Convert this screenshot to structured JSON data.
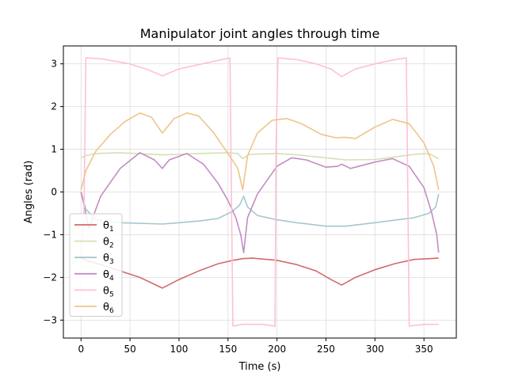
{
  "chart_data": {
    "type": "line",
    "title": "Manipulator joint angles through time",
    "xlabel": "Time (s)",
    "ylabel": "Angles (rad)",
    "xlim": [
      -18,
      383
    ],
    "ylim": [
      -3.42,
      3.42
    ],
    "xticks": [
      0,
      50,
      100,
      150,
      200,
      250,
      300,
      350
    ],
    "yticks": [
      -3,
      -2,
      -1,
      0,
      1,
      2,
      3
    ],
    "grid": true,
    "legend_position": "lower-left",
    "series": [
      {
        "name": "θ1",
        "sub": "1",
        "color": "#d46a6a",
        "x": [
          0,
          5,
          20,
          40,
          60,
          83,
          100,
          120,
          140,
          155,
          165,
          175,
          200,
          220,
          240,
          255,
          266,
          280,
          300,
          320,
          340,
          365
        ],
        "y": [
          -1.55,
          -1.6,
          -1.7,
          -1.85,
          -2.0,
          -2.25,
          -2.05,
          -1.85,
          -1.68,
          -1.6,
          -1.56,
          -1.55,
          -1.6,
          -1.7,
          -1.85,
          -2.05,
          -2.18,
          -2.0,
          -1.82,
          -1.68,
          -1.58,
          -1.55
        ]
      },
      {
        "name": "θ2",
        "sub": "2",
        "color": "#d4e0b4",
        "x": [
          0,
          5,
          15,
          40,
          83,
          100,
          120,
          150,
          160,
          165,
          172,
          200,
          220,
          250,
          270,
          300,
          340,
          355,
          365
        ],
        "y": [
          0.8,
          0.85,
          0.9,
          0.92,
          0.87,
          0.88,
          0.9,
          0.92,
          0.9,
          0.78,
          0.88,
          0.9,
          0.87,
          0.8,
          0.75,
          0.76,
          0.88,
          0.9,
          0.78
        ]
      },
      {
        "name": "θ3",
        "sub": "3",
        "color": "#a5c8cc",
        "x": [
          0,
          5,
          15,
          40,
          83,
          100,
          120,
          140,
          155,
          162,
          166,
          170,
          180,
          200,
          220,
          250,
          270,
          300,
          340,
          355,
          362,
          365
        ],
        "y": [
          0.0,
          -0.4,
          -0.65,
          -0.72,
          -0.75,
          -0.72,
          -0.68,
          -0.62,
          -0.45,
          -0.3,
          -0.1,
          -0.35,
          -0.55,
          -0.65,
          -0.72,
          -0.8,
          -0.8,
          -0.72,
          -0.6,
          -0.5,
          -0.35,
          -0.05
        ]
      },
      {
        "name": "θ4",
        "sub": "4",
        "color": "#c28dc2",
        "x": [
          0,
          3,
          8,
          20,
          40,
          60,
          75,
          83,
          90,
          108,
          125,
          140,
          150,
          158,
          163,
          166,
          170,
          180,
          200,
          215,
          230,
          250,
          262,
          266,
          275,
          300,
          318,
          335,
          350,
          358,
          363,
          365
        ],
        "y": [
          0.0,
          -0.3,
          -0.85,
          -0.1,
          0.55,
          0.92,
          0.75,
          0.55,
          0.75,
          0.9,
          0.65,
          0.2,
          -0.2,
          -0.6,
          -1.0,
          -1.42,
          -0.6,
          -0.05,
          0.6,
          0.8,
          0.75,
          0.58,
          0.6,
          0.65,
          0.55,
          0.7,
          0.78,
          0.6,
          0.1,
          -0.5,
          -1.0,
          -1.42
        ]
      },
      {
        "name": "θ5",
        "sub": "5",
        "color": "#ffc0d4",
        "x": [
          0,
          3,
          5,
          20,
          50,
          70,
          83,
          100,
          120,
          140,
          152,
          153,
          155,
          165,
          185,
          198,
          199,
          201,
          220,
          240,
          255,
          266,
          280,
          300,
          320,
          332,
          333,
          335,
          350,
          365
        ],
        "y": [
          -1.55,
          -0.5,
          3.14,
          3.12,
          3.0,
          2.85,
          2.72,
          2.88,
          2.98,
          3.08,
          3.14,
          1.0,
          -3.14,
          -3.1,
          -3.1,
          -3.14,
          1.0,
          3.14,
          3.1,
          3.0,
          2.88,
          2.7,
          2.88,
          3.0,
          3.1,
          3.14,
          1.0,
          -3.14,
          -3.1,
          -3.1
        ]
      },
      {
        "name": "θ6",
        "sub": "6",
        "color": "#eec58a",
        "x": [
          0,
          5,
          15,
          30,
          45,
          60,
          72,
          83,
          95,
          108,
          120,
          135,
          150,
          160,
          165,
          170,
          180,
          195,
          210,
          225,
          245,
          260,
          270,
          280,
          300,
          318,
          335,
          350,
          360,
          365
        ],
        "y": [
          0.05,
          0.5,
          0.95,
          1.35,
          1.65,
          1.85,
          1.75,
          1.38,
          1.72,
          1.85,
          1.78,
          1.4,
          0.9,
          0.55,
          0.05,
          0.85,
          1.38,
          1.68,
          1.72,
          1.6,
          1.35,
          1.27,
          1.28,
          1.25,
          1.52,
          1.7,
          1.6,
          1.15,
          0.6,
          0.05
        ]
      }
    ]
  }
}
